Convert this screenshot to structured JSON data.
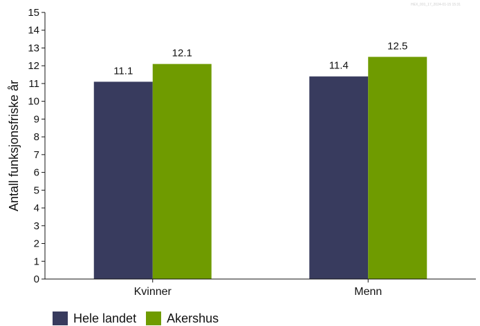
{
  "watermark": "HEX_001_17_2024-01-15 15:31",
  "colors": {
    "hele_landet": "#383b5e",
    "akershus": "#6f9b00"
  },
  "chart_data": {
    "type": "bar",
    "categories": [
      "Kvinner",
      "Menn"
    ],
    "series": [
      {
        "name": "Hele landet",
        "values": [
          11.1,
          11.4
        ],
        "labels": [
          "11.1",
          "11.4"
        ]
      },
      {
        "name": "Akershus",
        "values": [
          12.1,
          12.5
        ],
        "labels": [
          "12.1",
          "12.5"
        ]
      }
    ],
    "title": "",
    "xlabel": "",
    "ylabel": "Antall funksjonsfriske år",
    "ylim": [
      0,
      15
    ],
    "yticks": [
      "0",
      "1",
      "2",
      "3",
      "4",
      "5",
      "6",
      "7",
      "8",
      "9",
      "10",
      "11",
      "12",
      "13",
      "14",
      "15"
    ],
    "grid": false,
    "legend_position": "bottom-left"
  }
}
